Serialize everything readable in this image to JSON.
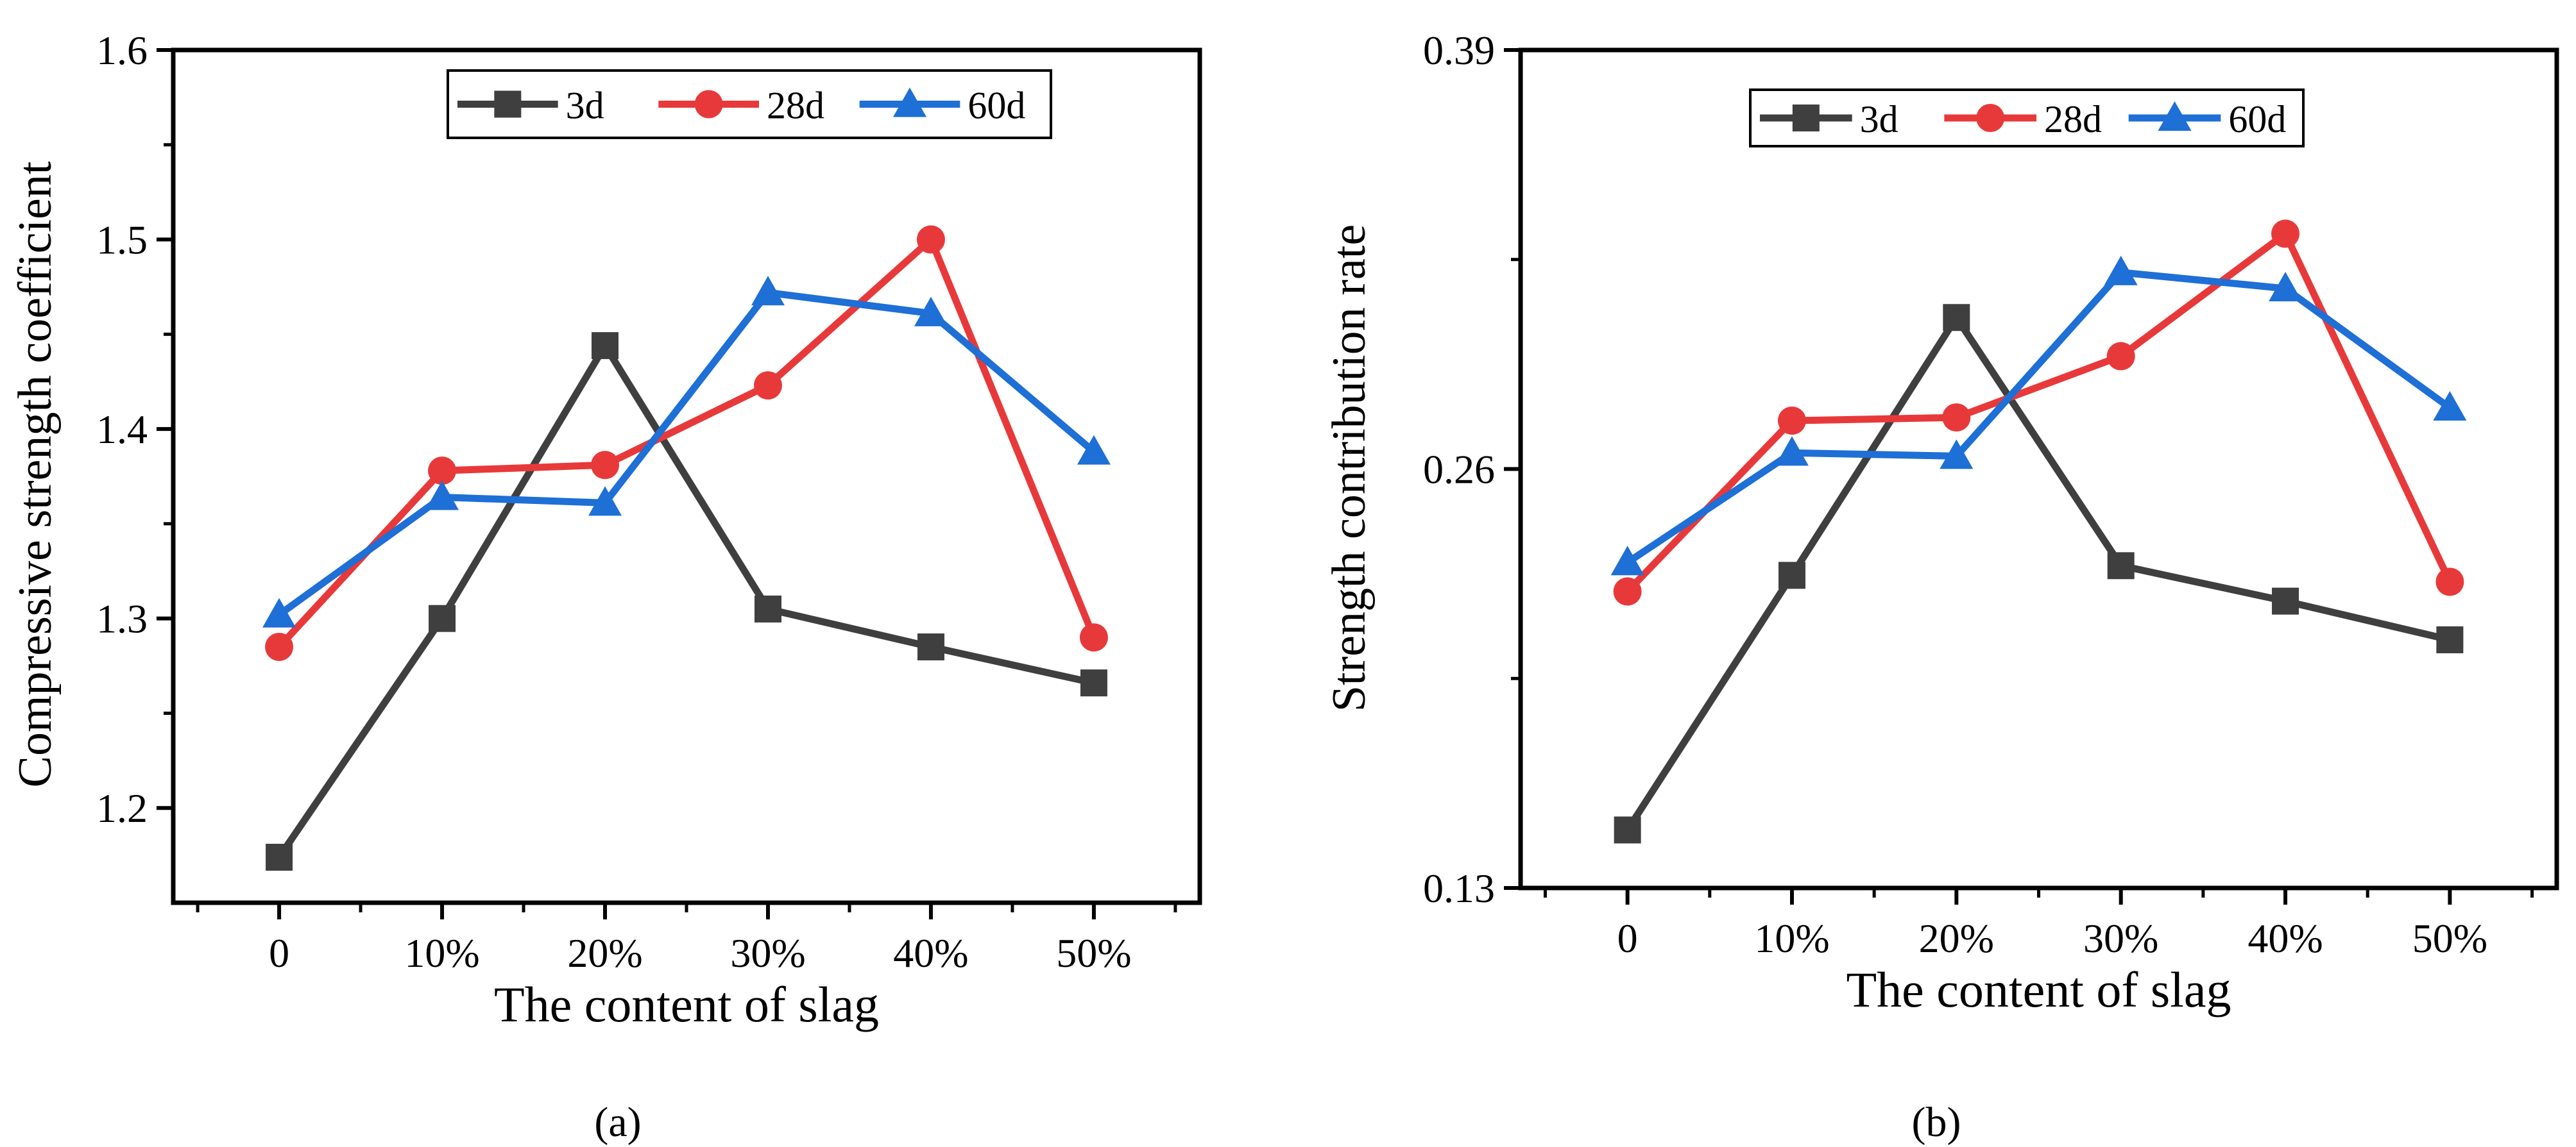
{
  "figure": {
    "panel_labels": [
      "(a)",
      "(b)"
    ]
  },
  "series_style": {
    "3d": {
      "color": "#3f3f3f",
      "marker": "square"
    },
    "28d": {
      "color": "#e8393a",
      "marker": "circle"
    },
    "60d": {
      "color": "#1e6fd6",
      "marker": "triangle"
    }
  },
  "chart_data": [
    {
      "type": "line",
      "panel": "(a)",
      "title": "",
      "xlabel": "The content of slag",
      "ylabel": "Compressive strength coefficient",
      "categories": [
        "0",
        "10%",
        "20%",
        "30%",
        "40%",
        "50%"
      ],
      "ylim": [
        1.15,
        1.6
      ],
      "yticks": [
        1.2,
        1.3,
        1.4,
        1.5,
        1.6
      ],
      "ytick_labels": [
        "1.2",
        "1.3",
        "1.4",
        "1.5",
        "1.6"
      ],
      "legend": "top-center",
      "series": [
        {
          "name": "3d",
          "values": [
            1.174,
            1.3,
            1.444,
            1.305,
            1.285,
            1.266
          ]
        },
        {
          "name": "28d",
          "values": [
            1.285,
            1.378,
            1.381,
            1.423,
            1.5,
            1.29
          ]
        },
        {
          "name": "60d",
          "values": [
            1.302,
            1.364,
            1.361,
            1.472,
            1.461,
            1.388
          ]
        }
      ]
    },
    {
      "type": "line",
      "panel": "(b)",
      "title": "",
      "xlabel": "The content of slag",
      "ylabel": "Strength contribution rate",
      "categories": [
        "0",
        "10%",
        "20%",
        "30%",
        "40%",
        "50%"
      ],
      "ylim": [
        0.13,
        0.39
      ],
      "yticks": [
        0.13,
        0.26,
        0.39
      ],
      "ytick_labels": [
        "0.13",
        "0.26",
        "0.39"
      ],
      "legend": "top-center",
      "series": [
        {
          "name": "3d",
          "values": [
            0.148,
            0.227,
            0.307,
            0.23,
            0.219,
            0.207
          ]
        },
        {
          "name": "28d",
          "values": [
            0.222,
            0.275,
            0.276,
            0.295,
            0.333,
            0.225
          ]
        },
        {
          "name": "60d",
          "values": [
            0.231,
            0.265,
            0.264,
            0.321,
            0.316,
            0.279
          ]
        }
      ]
    }
  ]
}
